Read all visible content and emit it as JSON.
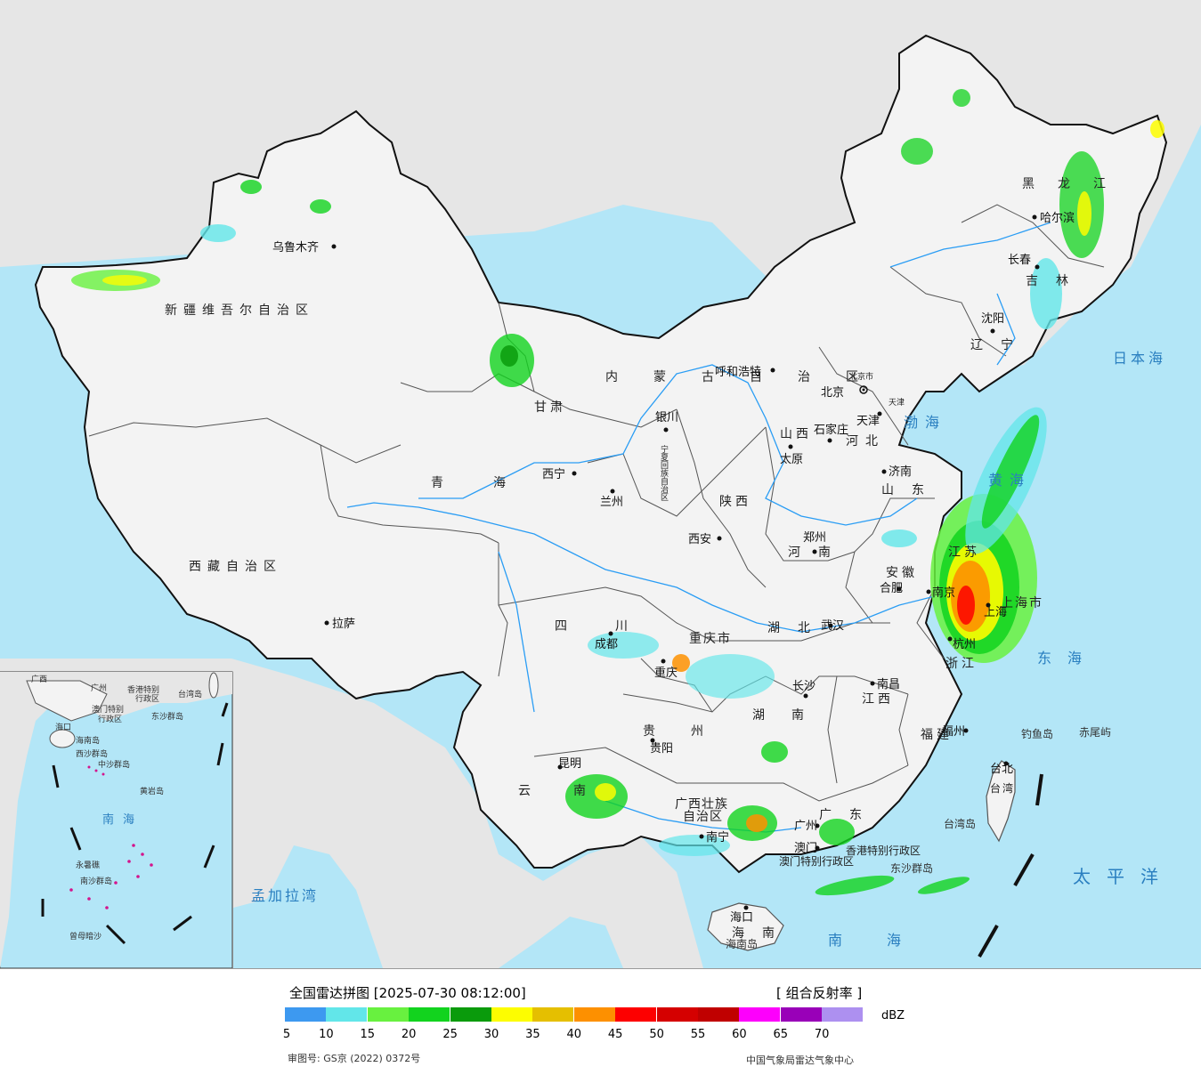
{
  "map": {
    "colors": {
      "ocean": "#b3e6f7",
      "foreign_land": "#e6e6e6",
      "china_land": "#f3f3f3",
      "border": "#111111",
      "province_border": "#555555",
      "river": "#2a9df4",
      "sea_label": "#2a7fc0"
    },
    "sea_labels": [
      {
        "id": "japan-sea",
        "text": "日本海"
      },
      {
        "id": "bohai",
        "text": "渤海"
      },
      {
        "id": "huanghai",
        "text": "黄海"
      },
      {
        "id": "donghai",
        "text": "东海"
      },
      {
        "id": "taipingyang",
        "text": "太平洋"
      },
      {
        "id": "nanhai",
        "text": "南海"
      },
      {
        "id": "mengjiala",
        "text": "孟加拉湾"
      }
    ],
    "provinces": [
      {
        "id": "xinjiang",
        "text": "新疆维吾尔自治区"
      },
      {
        "id": "xizang",
        "text": "西藏自治区"
      },
      {
        "id": "qinghai",
        "text": "青海"
      },
      {
        "id": "gansu",
        "text": "甘肃"
      },
      {
        "id": "neimenggu",
        "text": "内蒙古自治区"
      },
      {
        "id": "heilongjiang",
        "text": "黑龙江"
      },
      {
        "id": "jilin",
        "text": "吉林"
      },
      {
        "id": "liaoning",
        "text": "辽宁"
      },
      {
        "id": "hebei",
        "text": "河北"
      },
      {
        "id": "shanxi",
        "text": "山西"
      },
      {
        "id": "shaanxi",
        "text": "陕西"
      },
      {
        "id": "shandong",
        "text": "山东"
      },
      {
        "id": "henan",
        "text": "河南"
      },
      {
        "id": "jiangsu",
        "text": "江苏"
      },
      {
        "id": "anhui",
        "text": "安徽"
      },
      {
        "id": "shanghai",
        "text": "上海市"
      },
      {
        "id": "zhejiang",
        "text": "浙江"
      },
      {
        "id": "hubei",
        "text": "湖北"
      },
      {
        "id": "sichuan",
        "text": "四川"
      },
      {
        "id": "chongqing",
        "text": "重庆市"
      },
      {
        "id": "hunan",
        "text": "湖南"
      },
      {
        "id": "jiangxi",
        "text": "江西"
      },
      {
        "id": "fujian",
        "text": "福建"
      },
      {
        "id": "guizhou",
        "text": "贵州"
      },
      {
        "id": "yunnan",
        "text": "云南"
      },
      {
        "id": "guangxi1",
        "text": "广西壮族"
      },
      {
        "id": "guangxi2",
        "text": "自治区"
      },
      {
        "id": "guangdong",
        "text": "广东"
      },
      {
        "id": "hainan",
        "text": "海南"
      },
      {
        "id": "taiwan",
        "text": "台湾"
      },
      {
        "id": "ningxia",
        "text": "宁夏回族自治区"
      },
      {
        "id": "beijingshi",
        "text": "北京市"
      },
      {
        "id": "tianjinshi",
        "text": "天津"
      },
      {
        "id": "hk",
        "text": "香港特别行政区"
      },
      {
        "id": "macau",
        "text": "澳门特别行政区"
      }
    ],
    "cities": [
      {
        "id": "wulumuqi",
        "text": "乌鲁木齐"
      },
      {
        "id": "lasa",
        "text": "拉萨"
      },
      {
        "id": "xining",
        "text": "西宁"
      },
      {
        "id": "lanzhou",
        "text": "兰州"
      },
      {
        "id": "yinchuan",
        "text": "银川"
      },
      {
        "id": "huhehaote",
        "text": "呼和浩特"
      },
      {
        "id": "beijing",
        "text": "北京"
      },
      {
        "id": "tianjin",
        "text": "天津"
      },
      {
        "id": "shijiazhuang",
        "text": "石家庄"
      },
      {
        "id": "taiyuan",
        "text": "太原"
      },
      {
        "id": "jinan",
        "text": "济南"
      },
      {
        "id": "xian",
        "text": "西安"
      },
      {
        "id": "zhengzhou",
        "text": "郑州"
      },
      {
        "id": "hefei",
        "text": "合肥"
      },
      {
        "id": "nanjing",
        "text": "南京"
      },
      {
        "id": "shanghaicity",
        "text": "上海"
      },
      {
        "id": "hangzhou",
        "text": "杭州"
      },
      {
        "id": "wuhan",
        "text": "武汉"
      },
      {
        "id": "chengdu",
        "text": "成都"
      },
      {
        "id": "chongqingcity",
        "text": "重庆"
      },
      {
        "id": "changsha",
        "text": "长沙"
      },
      {
        "id": "nanchang",
        "text": "南昌"
      },
      {
        "id": "fuzhou",
        "text": "福州"
      },
      {
        "id": "guiyang",
        "text": "贵阳"
      },
      {
        "id": "kunming",
        "text": "昆明"
      },
      {
        "id": "nanning",
        "text": "南宁"
      },
      {
        "id": "guangzhou",
        "text": "广州"
      },
      {
        "id": "aomen",
        "text": "澳门"
      },
      {
        "id": "haikou",
        "text": "海口"
      },
      {
        "id": "taibei",
        "text": "台北"
      },
      {
        "id": "haerbin",
        "text": "哈尔滨"
      },
      {
        "id": "changchun",
        "text": "长春"
      },
      {
        "id": "shenyang",
        "text": "沈阳"
      }
    ],
    "islands": [
      {
        "id": "diaoyu",
        "text": "钓鱼岛"
      },
      {
        "id": "chiwei",
        "text": "赤尾屿"
      },
      {
        "id": "taiwandao",
        "text": "台湾岛"
      },
      {
        "id": "dongsha",
        "text": "东沙群岛"
      },
      {
        "id": "hainandao",
        "text": "海南岛"
      }
    ],
    "inset": {
      "labels": [
        {
          "id": "i-guangxi",
          "text": "广西"
        },
        {
          "id": "i-guangzhou",
          "text": "广州"
        },
        {
          "id": "i-hk",
          "text": "香港特别"
        },
        {
          "id": "i-hk2",
          "text": "行政区"
        },
        {
          "id": "i-macau",
          "text": "澳门特别"
        },
        {
          "id": "i-macau2",
          "text": "行政区"
        },
        {
          "id": "i-taiwan",
          "text": "台湾岛"
        },
        {
          "id": "i-dongsha",
          "text": "东沙群岛"
        },
        {
          "id": "i-haikou",
          "text": "海口"
        },
        {
          "id": "i-hainan",
          "text": "海南岛"
        },
        {
          "id": "i-xisha",
          "text": "西沙群岛"
        },
        {
          "id": "i-zhongsha",
          "text": "中沙群岛"
        },
        {
          "id": "i-huangyan",
          "text": "黄岩岛"
        },
        {
          "id": "i-nanhai",
          "text": "南海"
        },
        {
          "id": "i-nansha",
          "text": "南沙群岛"
        },
        {
          "id": "i-yongshu",
          "text": "永暑礁"
        },
        {
          "id": "i-zengmu",
          "text": "曾母暗沙"
        }
      ]
    }
  },
  "legend": {
    "title": "全国雷达拼图 [2025-07-30 08:12:00]",
    "product": "[ 组合反射率 ]",
    "unit": "dBZ",
    "colors": [
      "#3d99f0",
      "#62e6e9",
      "#68f13f",
      "#12d31e",
      "#0a9b0c",
      "#fdfd00",
      "#e5bf00",
      "#fd9000",
      "#fd0000",
      "#d50000",
      "#c00000",
      "#fd00fc",
      "#9900b8",
      "#ad90f0"
    ],
    "ticks": [
      "5",
      "10",
      "15",
      "20",
      "25",
      "30",
      "35",
      "40",
      "45",
      "50",
      "55",
      "60",
      "65",
      "70"
    ],
    "approval": "审图号: GS京 (2022) 0372号",
    "source": "中国气象局雷达气象中心"
  }
}
